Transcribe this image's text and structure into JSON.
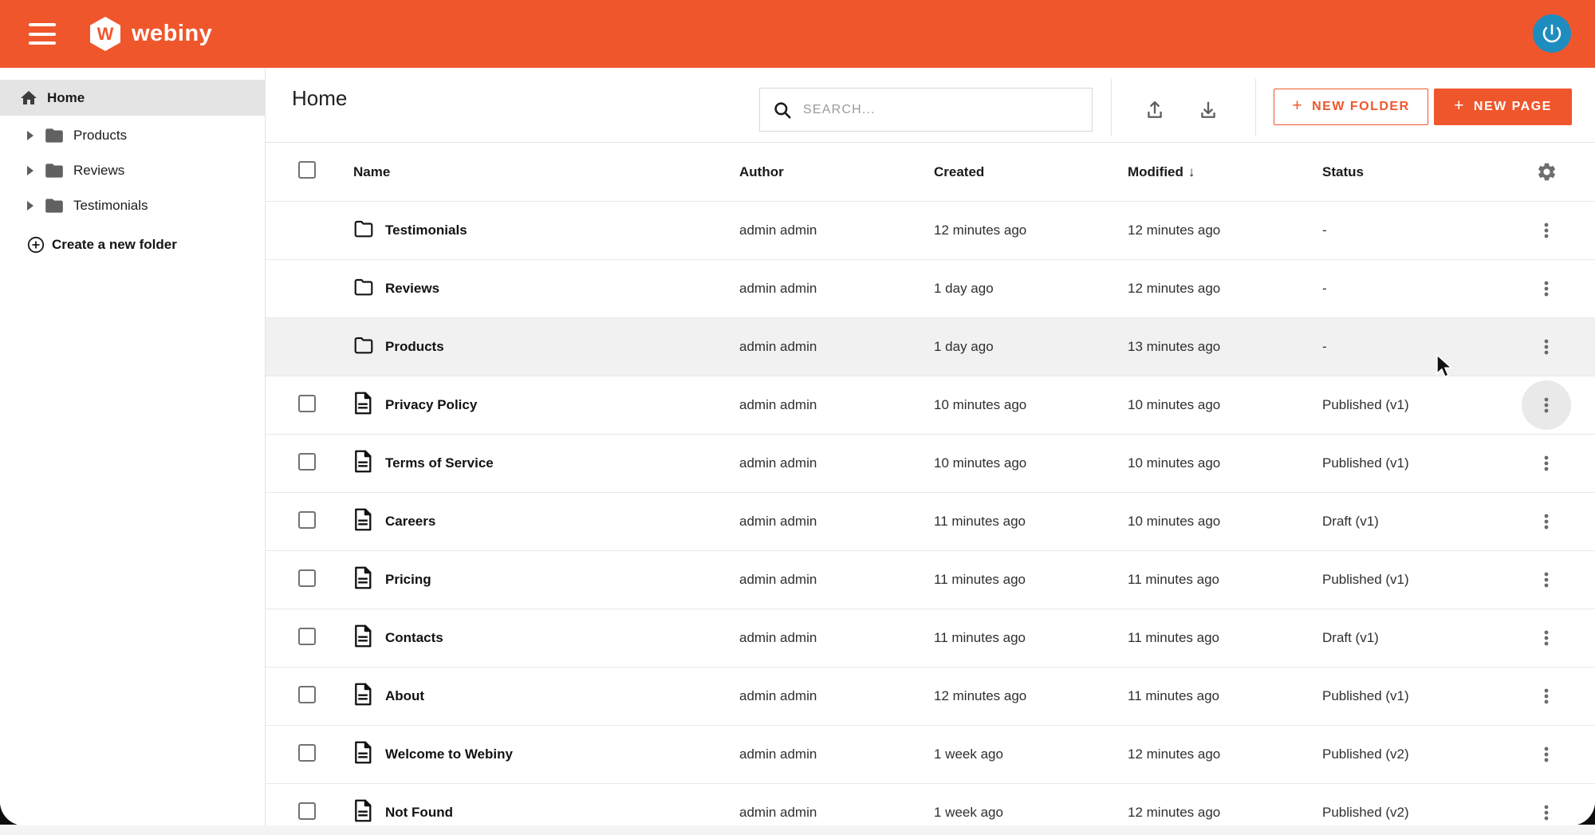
{
  "colors": {
    "accent": "#f0562c",
    "avatar_blue": "#1e8cbe",
    "row_hover": "#f1f1f1",
    "selected_sidebar": "#e4e4e4"
  },
  "topbar": {
    "brand": "webiny",
    "logo_letter": "W"
  },
  "sidebar": {
    "home_label": "Home",
    "folders": [
      "Products",
      "Reviews",
      "Testimonials"
    ],
    "create_label": "Create a new folder"
  },
  "header": {
    "title": "Home",
    "search_placeholder": "SEARCH...",
    "new_folder_label": "NEW FOLDER",
    "new_page_label": "NEW PAGE",
    "plus": "+"
  },
  "table": {
    "columns": {
      "name": "Name",
      "author": "Author",
      "created": "Created",
      "modified": "Modified",
      "status": "Status"
    },
    "sort_column": "modified",
    "sort_arrow": "↓",
    "rows": [
      {
        "type": "folder",
        "name": "Testimonials",
        "author": "admin admin",
        "created": "12 minutes ago",
        "modified": "12 minutes ago",
        "status": "-"
      },
      {
        "type": "folder",
        "name": "Reviews",
        "author": "admin admin",
        "created": "1 day ago",
        "modified": "12 minutes ago",
        "status": "-"
      },
      {
        "type": "folder",
        "name": "Products",
        "author": "admin admin",
        "created": "1 day ago",
        "modified": "13 minutes ago",
        "status": "-",
        "hover": true
      },
      {
        "type": "page",
        "name": "Privacy Policy",
        "author": "admin admin",
        "created": "10 minutes ago",
        "modified": "10 minutes ago",
        "status": "Published (v1)",
        "action_focused": true
      },
      {
        "type": "page",
        "name": "Terms of Service",
        "author": "admin admin",
        "created": "10 minutes ago",
        "modified": "10 minutes ago",
        "status": "Published (v1)"
      },
      {
        "type": "page",
        "name": "Careers",
        "author": "admin admin",
        "created": "11 minutes ago",
        "modified": "10 minutes ago",
        "status": "Draft (v1)"
      },
      {
        "type": "page",
        "name": "Pricing",
        "author": "admin admin",
        "created": "11 minutes ago",
        "modified": "11 minutes ago",
        "status": "Published (v1)"
      },
      {
        "type": "page",
        "name": "Contacts",
        "author": "admin admin",
        "created": "11 minutes ago",
        "modified": "11 minutes ago",
        "status": "Draft (v1)"
      },
      {
        "type": "page",
        "name": "About",
        "author": "admin admin",
        "created": "12 minutes ago",
        "modified": "11 minutes ago",
        "status": "Published (v1)"
      },
      {
        "type": "page",
        "name": "Welcome to Webiny",
        "author": "admin admin",
        "created": "1 week ago",
        "modified": "12 minutes ago",
        "status": "Published (v2)"
      },
      {
        "type": "page",
        "name": "Not Found",
        "author": "admin admin",
        "created": "1 week ago",
        "modified": "12 minutes ago",
        "status": "Published (v2)"
      }
    ]
  }
}
